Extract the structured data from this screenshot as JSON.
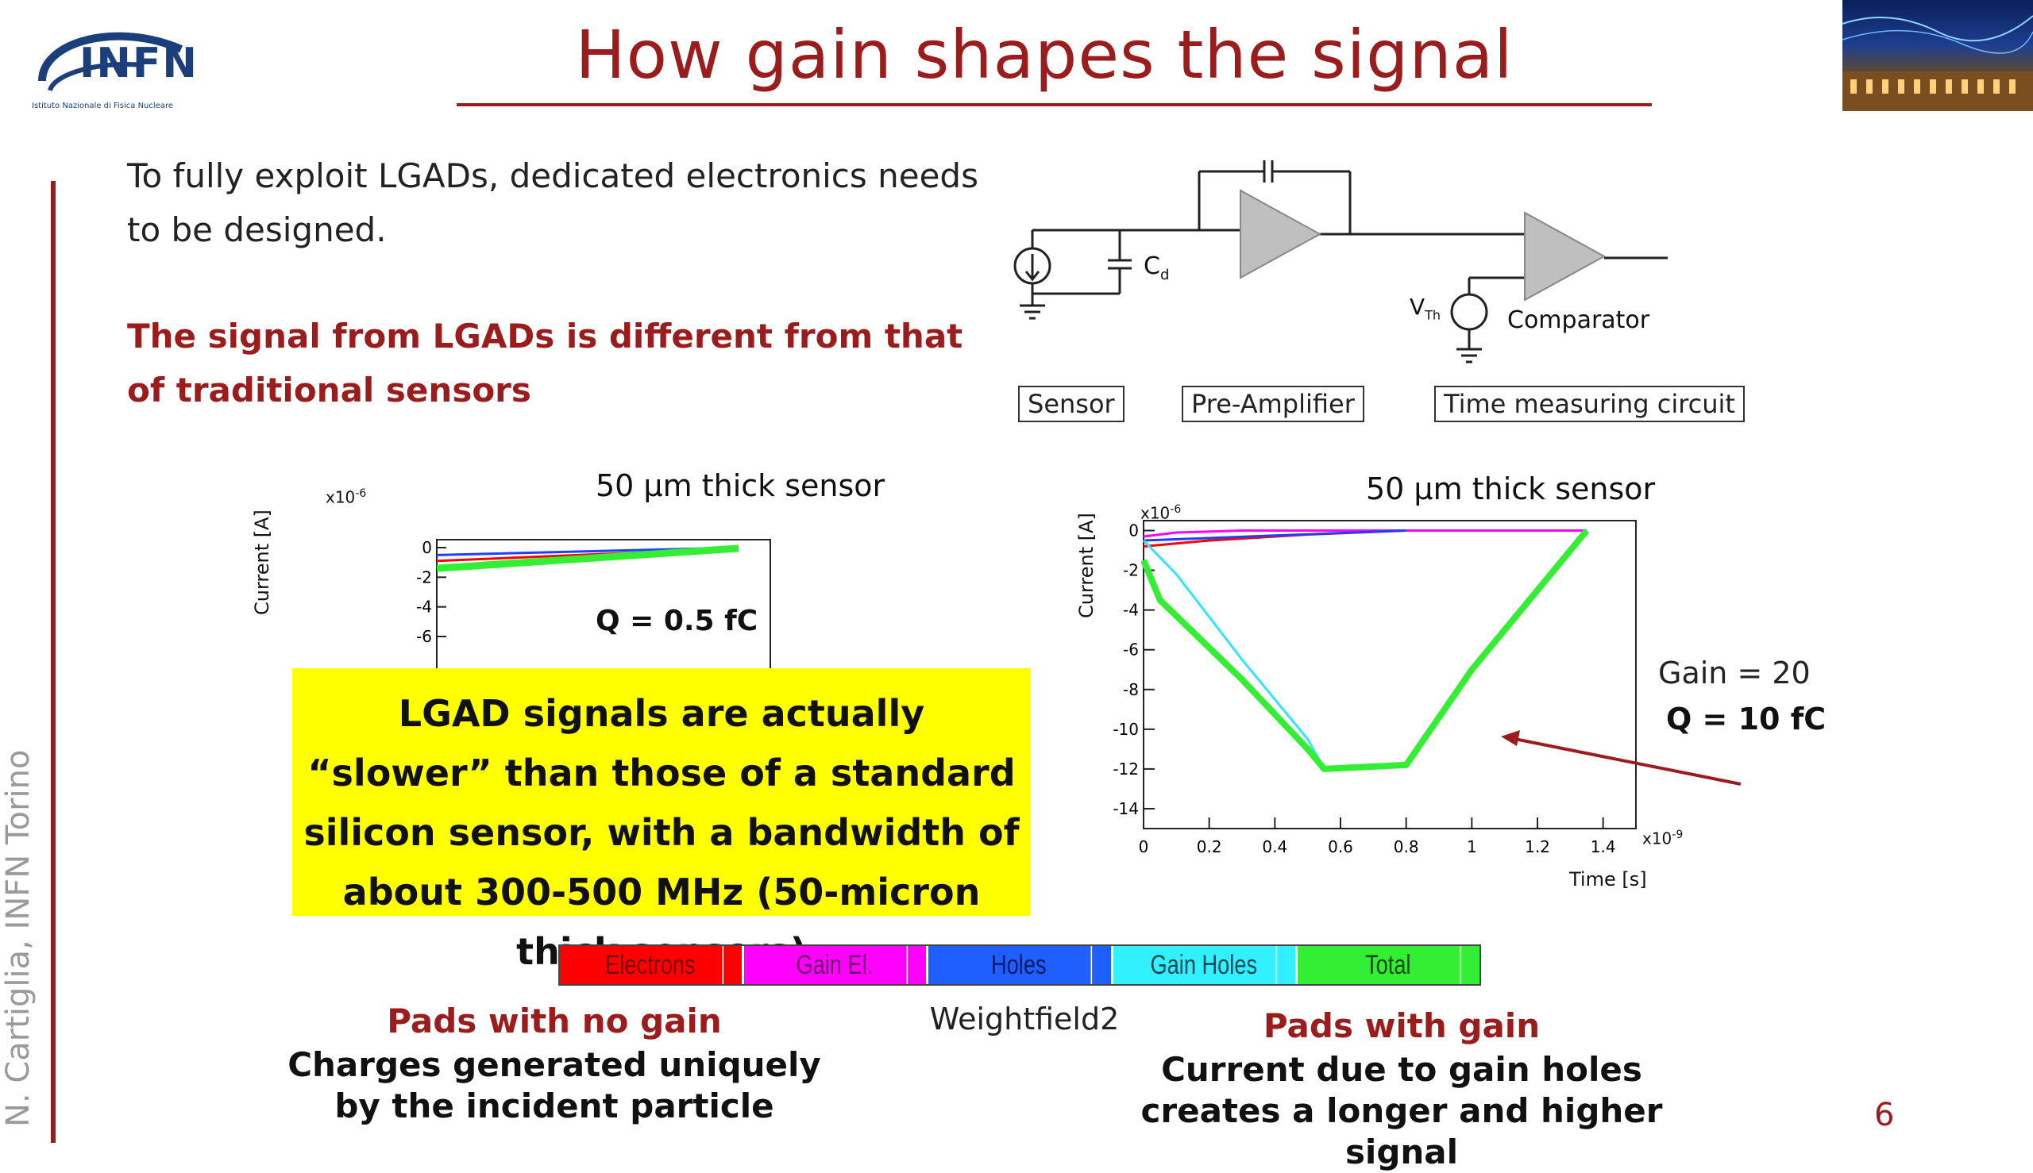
{
  "logo": {
    "name": "INFN",
    "subtitle": "Istituto Nazionale di Fisica Nucleare"
  },
  "title": "How gain shapes the signal",
  "author": "N. Cartiglia,  INFN Torino",
  "intro": "To fully exploit LGADs, dedicated electronics needs to be designed.",
  "emphasis": "The signal from LGADs is different from that of traditional sensors",
  "circuit": {
    "cd_label": "C",
    "cd_sub": "d",
    "vth_label": "V",
    "vth_sub": "Th",
    "comparator_label": "Comparator",
    "box_sensor": "Sensor",
    "box_preamp": "Pre-Amplifier",
    "box_time": "Time measuring circuit"
  },
  "plot_left": {
    "title": "50 μm thick sensor",
    "ylabel": "Current [A]",
    "yexp": "x10",
    "yexp_sup": "-6",
    "yticks": [
      "0",
      "-2",
      "-4",
      "-6"
    ],
    "charge": "Q = 0.5 fC"
  },
  "plot_right": {
    "title": "50 μm thick sensor",
    "ylabel": "Current [A]",
    "xlabel": "Time [s]",
    "yexp": "x10",
    "yexp_sup": "-6",
    "xexp": "x10",
    "xexp_sup": "-9",
    "yticks": [
      "0",
      "-2",
      "-4",
      "-6",
      "-8",
      "-10",
      "-12",
      "-14"
    ],
    "xticks": [
      "0",
      "0.2",
      "0.4",
      "0.6",
      "0.8",
      "1",
      "1.2",
      "1.4"
    ],
    "gain": "Gain = 20",
    "charge": "Q = 10 fC"
  },
  "chart_data": [
    {
      "type": "line",
      "title": "50 μm thick sensor",
      "ylabel": "Current [A]",
      "ylim": [
        -6.5,
        0.5
      ],
      "x_units": "x10^-9 s",
      "series": [
        {
          "name": "Electrons",
          "color": "#ff0000",
          "x": [
            0,
            1.4
          ],
          "y": [
            -0.9,
            -0.05
          ]
        },
        {
          "name": "Holes",
          "color": "#1f3fff",
          "x": [
            0,
            1.4
          ],
          "y": [
            -0.5,
            0.0
          ]
        },
        {
          "name": "Total",
          "color": "#33ee33",
          "x": [
            0,
            1.4
          ],
          "y": [
            -1.4,
            -0.05
          ]
        }
      ]
    },
    {
      "type": "line",
      "title": "50 μm thick sensor",
      "xlabel": "Time [s]",
      "ylabel": "Current [A]",
      "xlim": [
        0,
        1.5
      ],
      "ylim": [
        -15,
        0.5
      ],
      "series": [
        {
          "name": "Electrons",
          "color": "#ff0000",
          "x": [
            0,
            0.2,
            0.5,
            0.8
          ],
          "y": [
            -0.8,
            -0.5,
            -0.2,
            0
          ]
        },
        {
          "name": "Gain El.",
          "color": "#ff00ff",
          "x": [
            0,
            0.1,
            0.3,
            1.35
          ],
          "y": [
            -0.3,
            -0.1,
            0,
            0
          ]
        },
        {
          "name": "Holes",
          "color": "#1f3fff",
          "x": [
            0,
            0.4,
            0.8
          ],
          "y": [
            -0.5,
            -0.25,
            0
          ]
        },
        {
          "name": "Gain Holes",
          "color": "#33e5ff",
          "x": [
            0,
            0.1,
            0.3,
            0.5,
            0.55,
            0.8,
            1.0,
            1.2,
            1.35
          ],
          "y": [
            -0.5,
            -2.2,
            -6.5,
            -10.5,
            -12.0,
            -11.8,
            -7.0,
            -3.0,
            0
          ]
        },
        {
          "name": "Total",
          "color": "#33ee33",
          "x": [
            0,
            0.05,
            0.3,
            0.5,
            0.55,
            0.8,
            1.0,
            1.2,
            1.35
          ],
          "y": [
            -1.5,
            -3.5,
            -7.5,
            -11.0,
            -12.0,
            -11.8,
            -7.0,
            -3.0,
            0
          ]
        }
      ]
    }
  ],
  "callout": "LGAD signals are actually “slower” than those of a standard silicon sensor, with a bandwidth of about 300-500 MHz (50-micron thick sensors)",
  "legend": [
    {
      "label": "Electrons",
      "color": "#ff0000",
      "text_color": "#7a0000"
    },
    {
      "label": "Gain El.",
      "color": "#ff00ff",
      "text_color": "#6a006a"
    },
    {
      "label": "Holes",
      "color": "#1f5fff",
      "text_color": "#001a66"
    },
    {
      "label": "Gain Holes",
      "color": "#33f0ff",
      "text_color": "#004a55"
    },
    {
      "label": "Total",
      "color": "#33ee33",
      "text_color": "#0a4a0a"
    }
  ],
  "software": "Weightfield2",
  "pads_no_gain": {
    "heading": "Pads with no gain",
    "text": "Charges generated uniquely by the incident particle"
  },
  "pads_gain": {
    "heading": "Pads with gain",
    "text": "Current due to gain holes creates a longer and higher signal"
  },
  "page_number": "6"
}
